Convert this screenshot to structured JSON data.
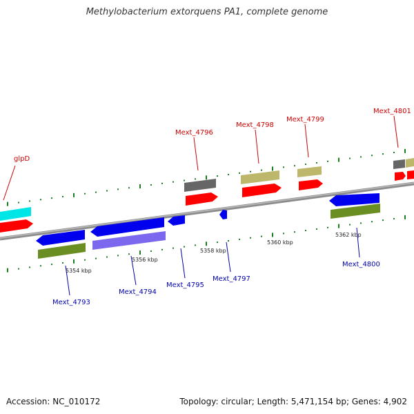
{
  "title": "Methylobacterium extorquens PA1, complete genome",
  "footer": {
    "accession": "Accession: NC_010172",
    "summary": "Topology: circular; Length: 5,471,154 bp; Genes: 4,902"
  },
  "colors": {
    "backbone": "#8c8c8c",
    "forward_cds": "#ff0000",
    "reverse_cds": "#0000ee",
    "forward_label": "#cc0000",
    "reverse_label": "#0000aa",
    "tick_green": "#1e7a1e",
    "feature_gray": "#666666",
    "feature_khaki": "#bdb76b",
    "feature_olive": "#6b8e23",
    "feature_cyan": "#00ffff",
    "feature_purple": "#7b68ee"
  },
  "scale_labels": [
    "5354 kbp",
    "5356 kbp",
    "5358 kbp",
    "5360 kbp",
    "5362 kbp"
  ],
  "forward_genes": [
    "glpD",
    "Mext_4796",
    "Mext_4798",
    "Mext_4799",
    "Mext_4801"
  ],
  "reverse_genes": [
    "Mext_4793",
    "Mext_4794",
    "Mext_4795",
    "Mext_4797",
    "Mext_4800"
  ]
}
